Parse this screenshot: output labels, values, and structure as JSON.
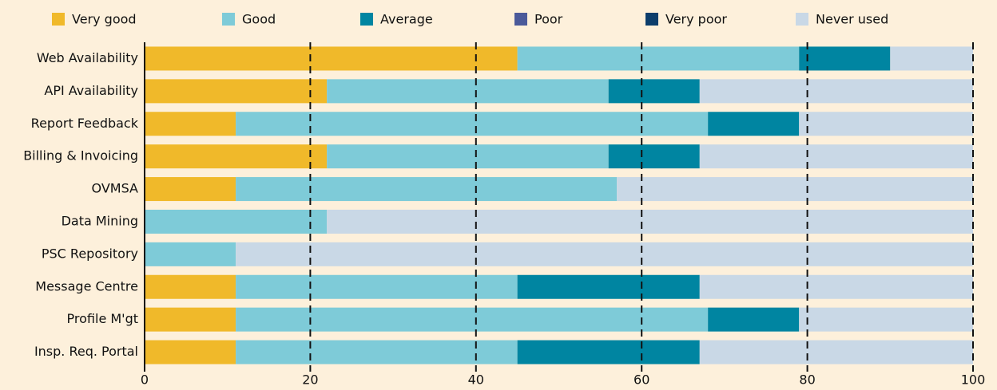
{
  "chart_data": {
    "type": "stacked-bar-horizontal",
    "categories": [
      "Web Availability",
      "API Availability",
      "Report Feedback",
      "Billing & Invoicing",
      "OVMSA",
      "Data Mining",
      "PSC Repository",
      "Message Centre",
      "Profile M'gt",
      "Insp. Req. Portal"
    ],
    "series": [
      {
        "name": "Very good",
        "color": "#f0b92a",
        "values": [
          45,
          22,
          11,
          22,
          11,
          0,
          0,
          11,
          11,
          11
        ]
      },
      {
        "name": "Good",
        "color": "#7ecbd8",
        "values": [
          34,
          34,
          57,
          34,
          46,
          22,
          11,
          34,
          57,
          34
        ]
      },
      {
        "name": "Average",
        "color": "#0085a1",
        "values": [
          11,
          11,
          11,
          11,
          0,
          0,
          0,
          22,
          11,
          22
        ]
      },
      {
        "name": "Poor",
        "color": "#4b5a9a",
        "values": [
          0,
          0,
          0,
          0,
          0,
          0,
          0,
          0,
          0,
          0
        ]
      },
      {
        "name": "Very poor",
        "color": "#0c3d6b",
        "values": [
          0,
          0,
          0,
          0,
          0,
          0,
          0,
          0,
          0,
          0
        ]
      },
      {
        "name": "Never used",
        "color": "#c9d8e6",
        "values": [
          10,
          33,
          21,
          33,
          43,
          78,
          89,
          33,
          21,
          33
        ]
      }
    ],
    "xlim": [
      0,
      100
    ],
    "xticks": [
      0,
      20,
      40,
      60,
      80,
      100
    ],
    "grid": true,
    "legend": "top"
  }
}
